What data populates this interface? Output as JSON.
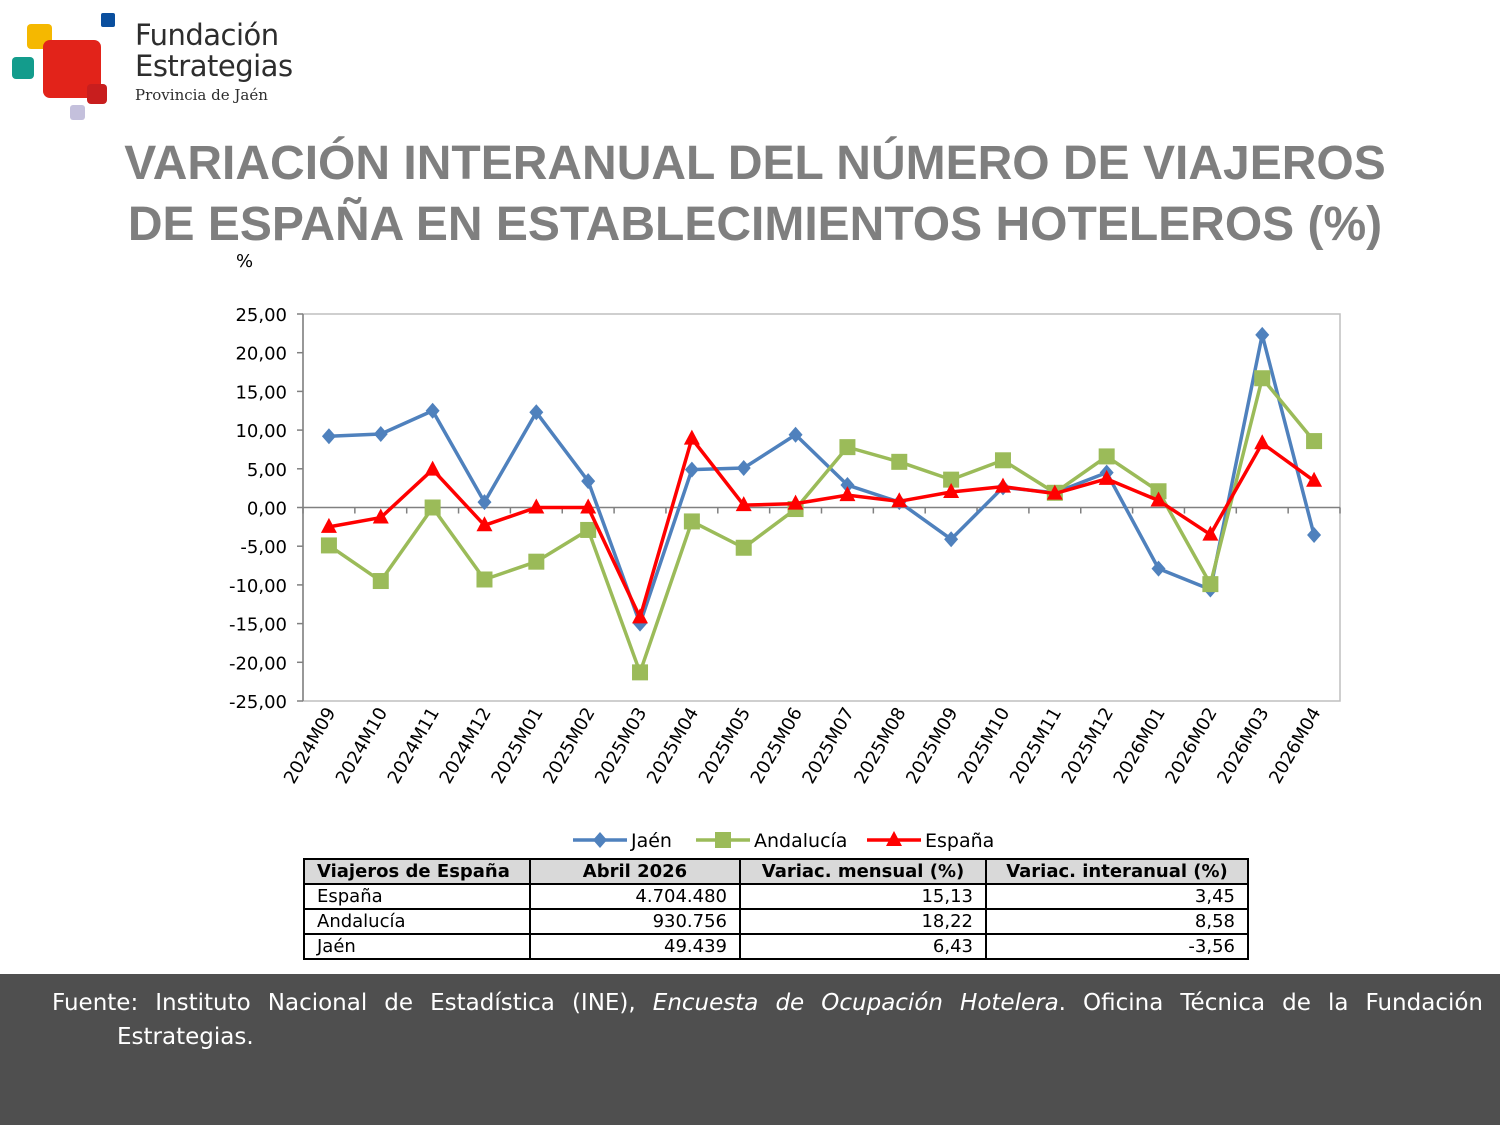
{
  "logo": {
    "line1": "Fundación",
    "line2": "Estrategias",
    "line3": "Provincia de Jaén",
    "colors": [
      "#f5b800",
      "#0a4f9e",
      "#139c8c",
      "#e2231a",
      "#c4c0dc"
    ]
  },
  "title": {
    "line1": "VARIACIÓN INTERANUAL DEL NÚMERO DE VIAJEROS",
    "line2": "DE ESPAÑA EN ESTABLECIMIENTOS HOTELEROS (%)"
  },
  "chart_data": {
    "type": "line",
    "ylabel": "%",
    "ylim": [
      -25,
      25
    ],
    "yticks": [
      "25,00",
      "20,00",
      "15,00",
      "10,00",
      "5,00",
      "0,00",
      "-5,00",
      "-10,00",
      "-15,00",
      "-20,00",
      "-25,00"
    ],
    "grid": false,
    "legend_position": "bottom",
    "categories": [
      "2024M09",
      "2024M10",
      "2024M11",
      "2024M12",
      "2025M01",
      "2025M02",
      "2025M03",
      "2025M04",
      "2025M05",
      "2025M06",
      "2025M07",
      "2025M08",
      "2025M09",
      "2025M10",
      "2025M11",
      "2025M12",
      "2026M01",
      "2026M02",
      "2026M03",
      "2026M04"
    ],
    "series": [
      {
        "name": "Jaén",
        "color": "#4f81bd",
        "marker": "diamond",
        "values": [
          9.2,
          9.5,
          12.5,
          0.7,
          12.3,
          3.4,
          -15.0,
          4.9,
          5.1,
          9.4,
          2.9,
          0.7,
          -4.1,
          2.6,
          1.9,
          4.5,
          -7.9,
          -10.6,
          22.3,
          -3.56
        ]
      },
      {
        "name": "Andalucía",
        "color": "#9bbb59",
        "marker": "square",
        "values": [
          -4.9,
          -9.5,
          0.0,
          -9.3,
          -7.0,
          -2.9,
          -21.3,
          -1.8,
          -5.2,
          -0.2,
          7.8,
          5.9,
          3.6,
          6.1,
          1.9,
          6.6,
          2.1,
          -9.9,
          16.7,
          8.58
        ]
      },
      {
        "name": "España",
        "color": "#ff0000",
        "marker": "triangle",
        "values": [
          -2.5,
          -1.3,
          4.9,
          -2.3,
          0.0,
          0.0,
          -14.2,
          8.9,
          0.3,
          0.5,
          1.6,
          0.8,
          2.0,
          2.7,
          1.8,
          3.7,
          0.9,
          -3.5,
          8.3,
          3.45
        ]
      }
    ]
  },
  "table": {
    "headers": [
      "Viajeros de España",
      "Abril 2026",
      "Variac. mensual (%)",
      "Variac. interanual (%)"
    ],
    "rows": [
      [
        "España",
        "4.704.480",
        "15,13",
        "3,45"
      ],
      [
        "Andalucía",
        "930.756",
        "18,22",
        "8,58"
      ],
      [
        "Jaén",
        "49.439",
        "6,43",
        "-3,56"
      ]
    ]
  },
  "footer": {
    "prefix": "Fuente: Instituto Nacional de Estadística (INE), ",
    "italic": "Encuesta de Ocupación Hotelera",
    "suffix": ". Oficina Técnica de la Fundación",
    "line2": "Estrategias."
  }
}
